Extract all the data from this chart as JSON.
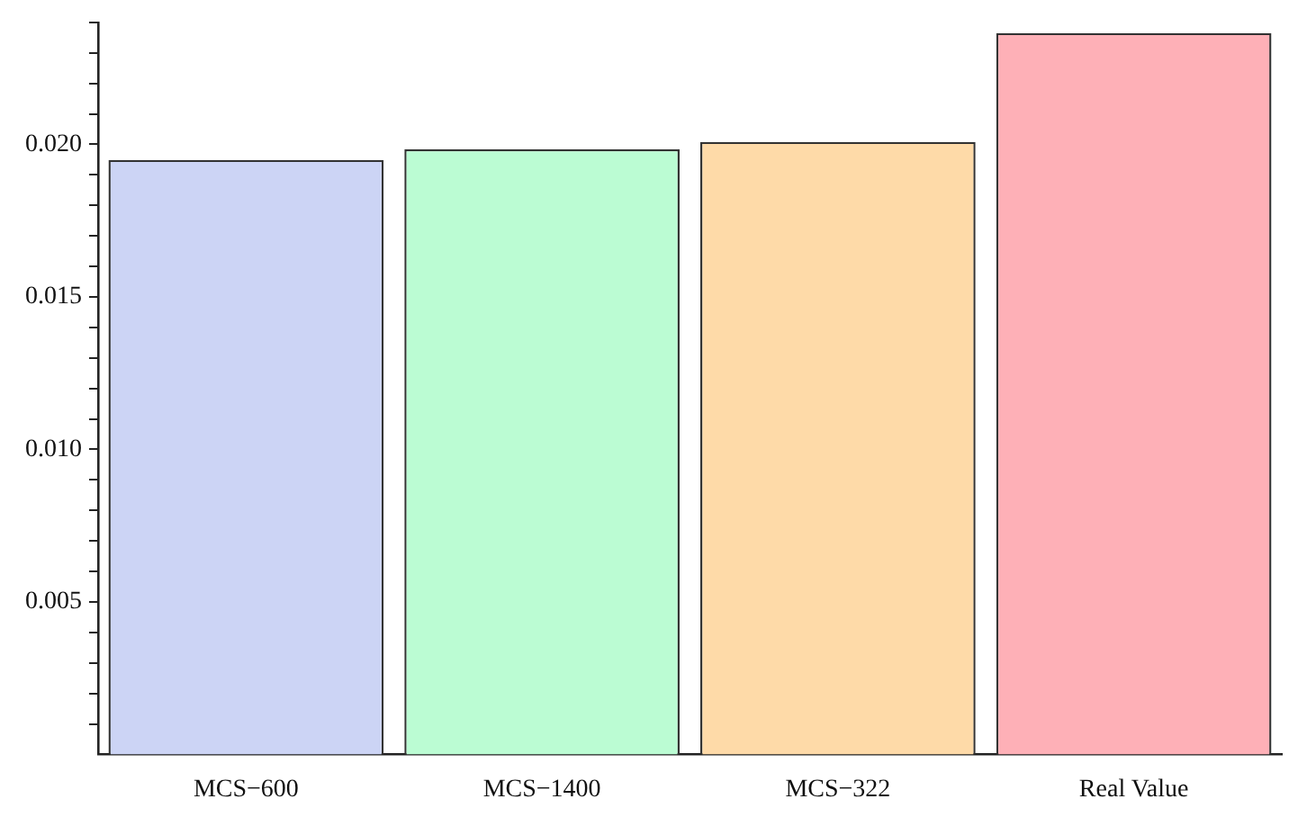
{
  "chart_data": {
    "type": "bar",
    "categories": [
      "MCS−600",
      "MCS−1400",
      "MCS−322",
      "Real Value"
    ],
    "values": [
      0.01949,
      0.01984,
      0.02008,
      0.02365
    ],
    "colors": [
      "#ccd4f5",
      "#bbfcd3",
      "#fedaa8",
      "#feb0b7"
    ],
    "ylim": [
      0,
      0.024
    ],
    "yticks": [
      {
        "value": 0.001,
        "label": null
      },
      {
        "value": 0.002,
        "label": null
      },
      {
        "value": 0.003,
        "label": null
      },
      {
        "value": 0.004,
        "label": null
      },
      0.005,
      {
        "value": 0.006,
        "label": null
      },
      {
        "value": 0.007,
        "label": null
      },
      {
        "value": 0.008,
        "label": null
      },
      {
        "value": 0.009,
        "label": null
      },
      {
        "value": 0.01,
        "label": "0.010"
      },
      {
        "value": 0.011,
        "label": null
      },
      {
        "value": 0.012,
        "label": null
      },
      {
        "value": 0.013,
        "label": null
      },
      {
        "value": 0.014,
        "label": null
      },
      0.015,
      {
        "value": 0.016,
        "label": null
      },
      {
        "value": 0.017,
        "label": null
      },
      {
        "value": 0.018,
        "label": null
      },
      {
        "value": 0.019,
        "label": null
      },
      {
        "value": 0.02,
        "label": "0.020"
      },
      {
        "value": 0.021,
        "label": null
      },
      {
        "value": 0.022,
        "label": null
      },
      {
        "value": 0.023,
        "label": null
      },
      {
        "value": 0.024,
        "label": null
      }
    ],
    "grid": false,
    "legend": false
  }
}
